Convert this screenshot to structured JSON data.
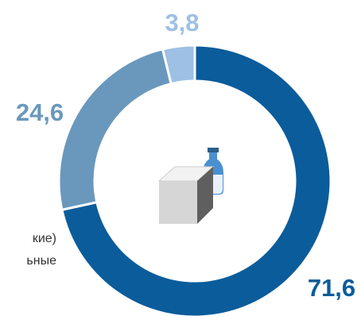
{
  "chart_data": {
    "type": "pie",
    "variant": "donut",
    "values": [
      71.6,
      24.6,
      3.8
    ],
    "data_labels": [
      "71,6",
      "24,6",
      "3,8"
    ],
    "colors": [
      "#0b5c9b",
      "#6a98bd",
      "#9dc0e4"
    ],
    "label_colors": [
      "#0b5c9b",
      "#6a98bd",
      "#9dc0e4"
    ],
    "legend_partial": [
      "кие)",
      "ьные"
    ],
    "center_icon": "cheese-block-and-milk-bottle-icon"
  }
}
